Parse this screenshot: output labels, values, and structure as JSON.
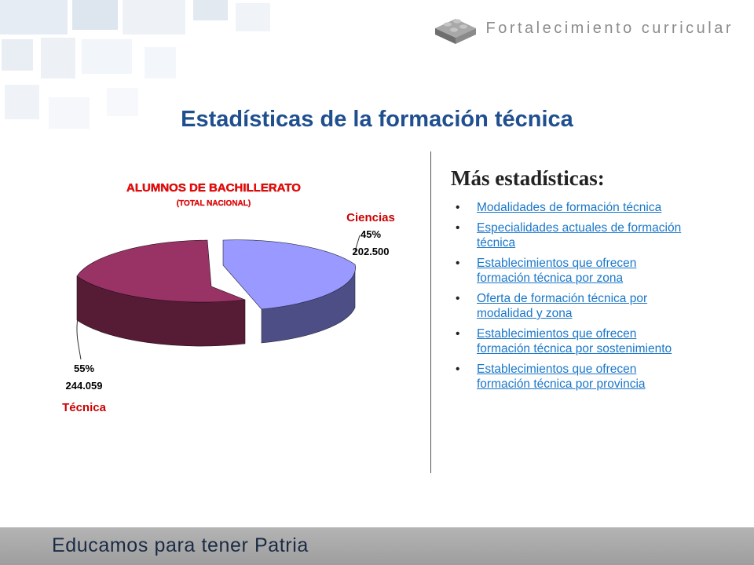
{
  "brand": {
    "text": "Fortalecimiento curricular",
    "icon": "lego-brick-icon"
  },
  "page_title": "Estadísticas de la formación técnica",
  "chart_data": {
    "type": "pie",
    "title": "ALUMNOS DE BACHILLERATO",
    "subtitle": "(TOTAL NACIONAL)",
    "slices": [
      {
        "name": "Ciencias",
        "percent": "45%",
        "value_label": "202.500",
        "value": 202500,
        "top_color": "#9999ff",
        "side_color": "#4e4e86"
      },
      {
        "name": "Técnica",
        "percent": "55%",
        "value_label": "244.059",
        "value": 244059,
        "top_color": "#993366",
        "side_color": "#561c35"
      }
    ],
    "colors": {
      "title": "#ff0000",
      "category_label": "#cc0000",
      "value_label": "#000000"
    }
  },
  "right": {
    "heading": "Más estadísticas:",
    "links": [
      "Modalidades de formación técnica",
      "Especialidades actuales de formación técnica",
      "Establecimientos que ofrecen formación técnica por zona",
      "Oferta de formación técnica por modalidad y zona",
      "Establecimientos que ofrecen formación técnica por sostenimiento",
      "Establecimientos que ofrecen formación técnica por provincia"
    ]
  },
  "footer": {
    "text": "Educamos para tener Patria",
    "color": "#1b2b44"
  }
}
